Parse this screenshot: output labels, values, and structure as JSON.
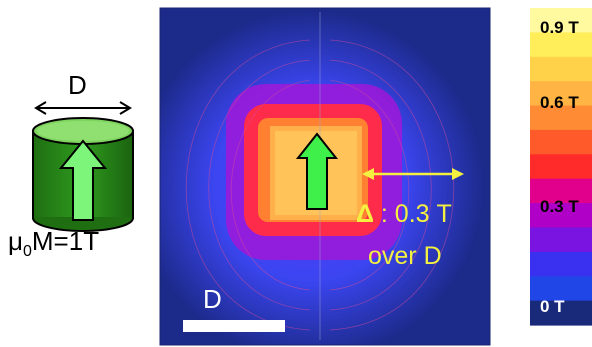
{
  "magnet": {
    "diameter_label": "D",
    "magnetization_symbol": "μ",
    "magnetization_subscript": "0",
    "magnetization_rest": "M=1T",
    "body_color": "#2f8f1e",
    "arrow_color": "#7cf57a"
  },
  "field_map": {
    "scale_bar_label": "D",
    "delta_symbol": "Δ",
    "delta_value": " : 0.3 T",
    "delta_over": "over D",
    "annotation_color": "#f4f040"
  },
  "colorbar": {
    "ticks": [
      {
        "label": "0.9 T",
        "color": "#000000"
      },
      {
        "label": "0.6 T",
        "color": "#000000"
      },
      {
        "label": "0.3 T",
        "color": "#000000"
      },
      {
        "label": "0 T",
        "color": "#ffffff"
      }
    ],
    "bands": [
      "#fff9a0",
      "#ffee5a",
      "#ffd24a",
      "#ffb443",
      "#ff8b34",
      "#ff5a2a",
      "#ff2b2b",
      "#e0008c",
      "#b000c8",
      "#7a14e0",
      "#3a30f0",
      "#2046e8",
      "#1a2a7a"
    ]
  }
}
